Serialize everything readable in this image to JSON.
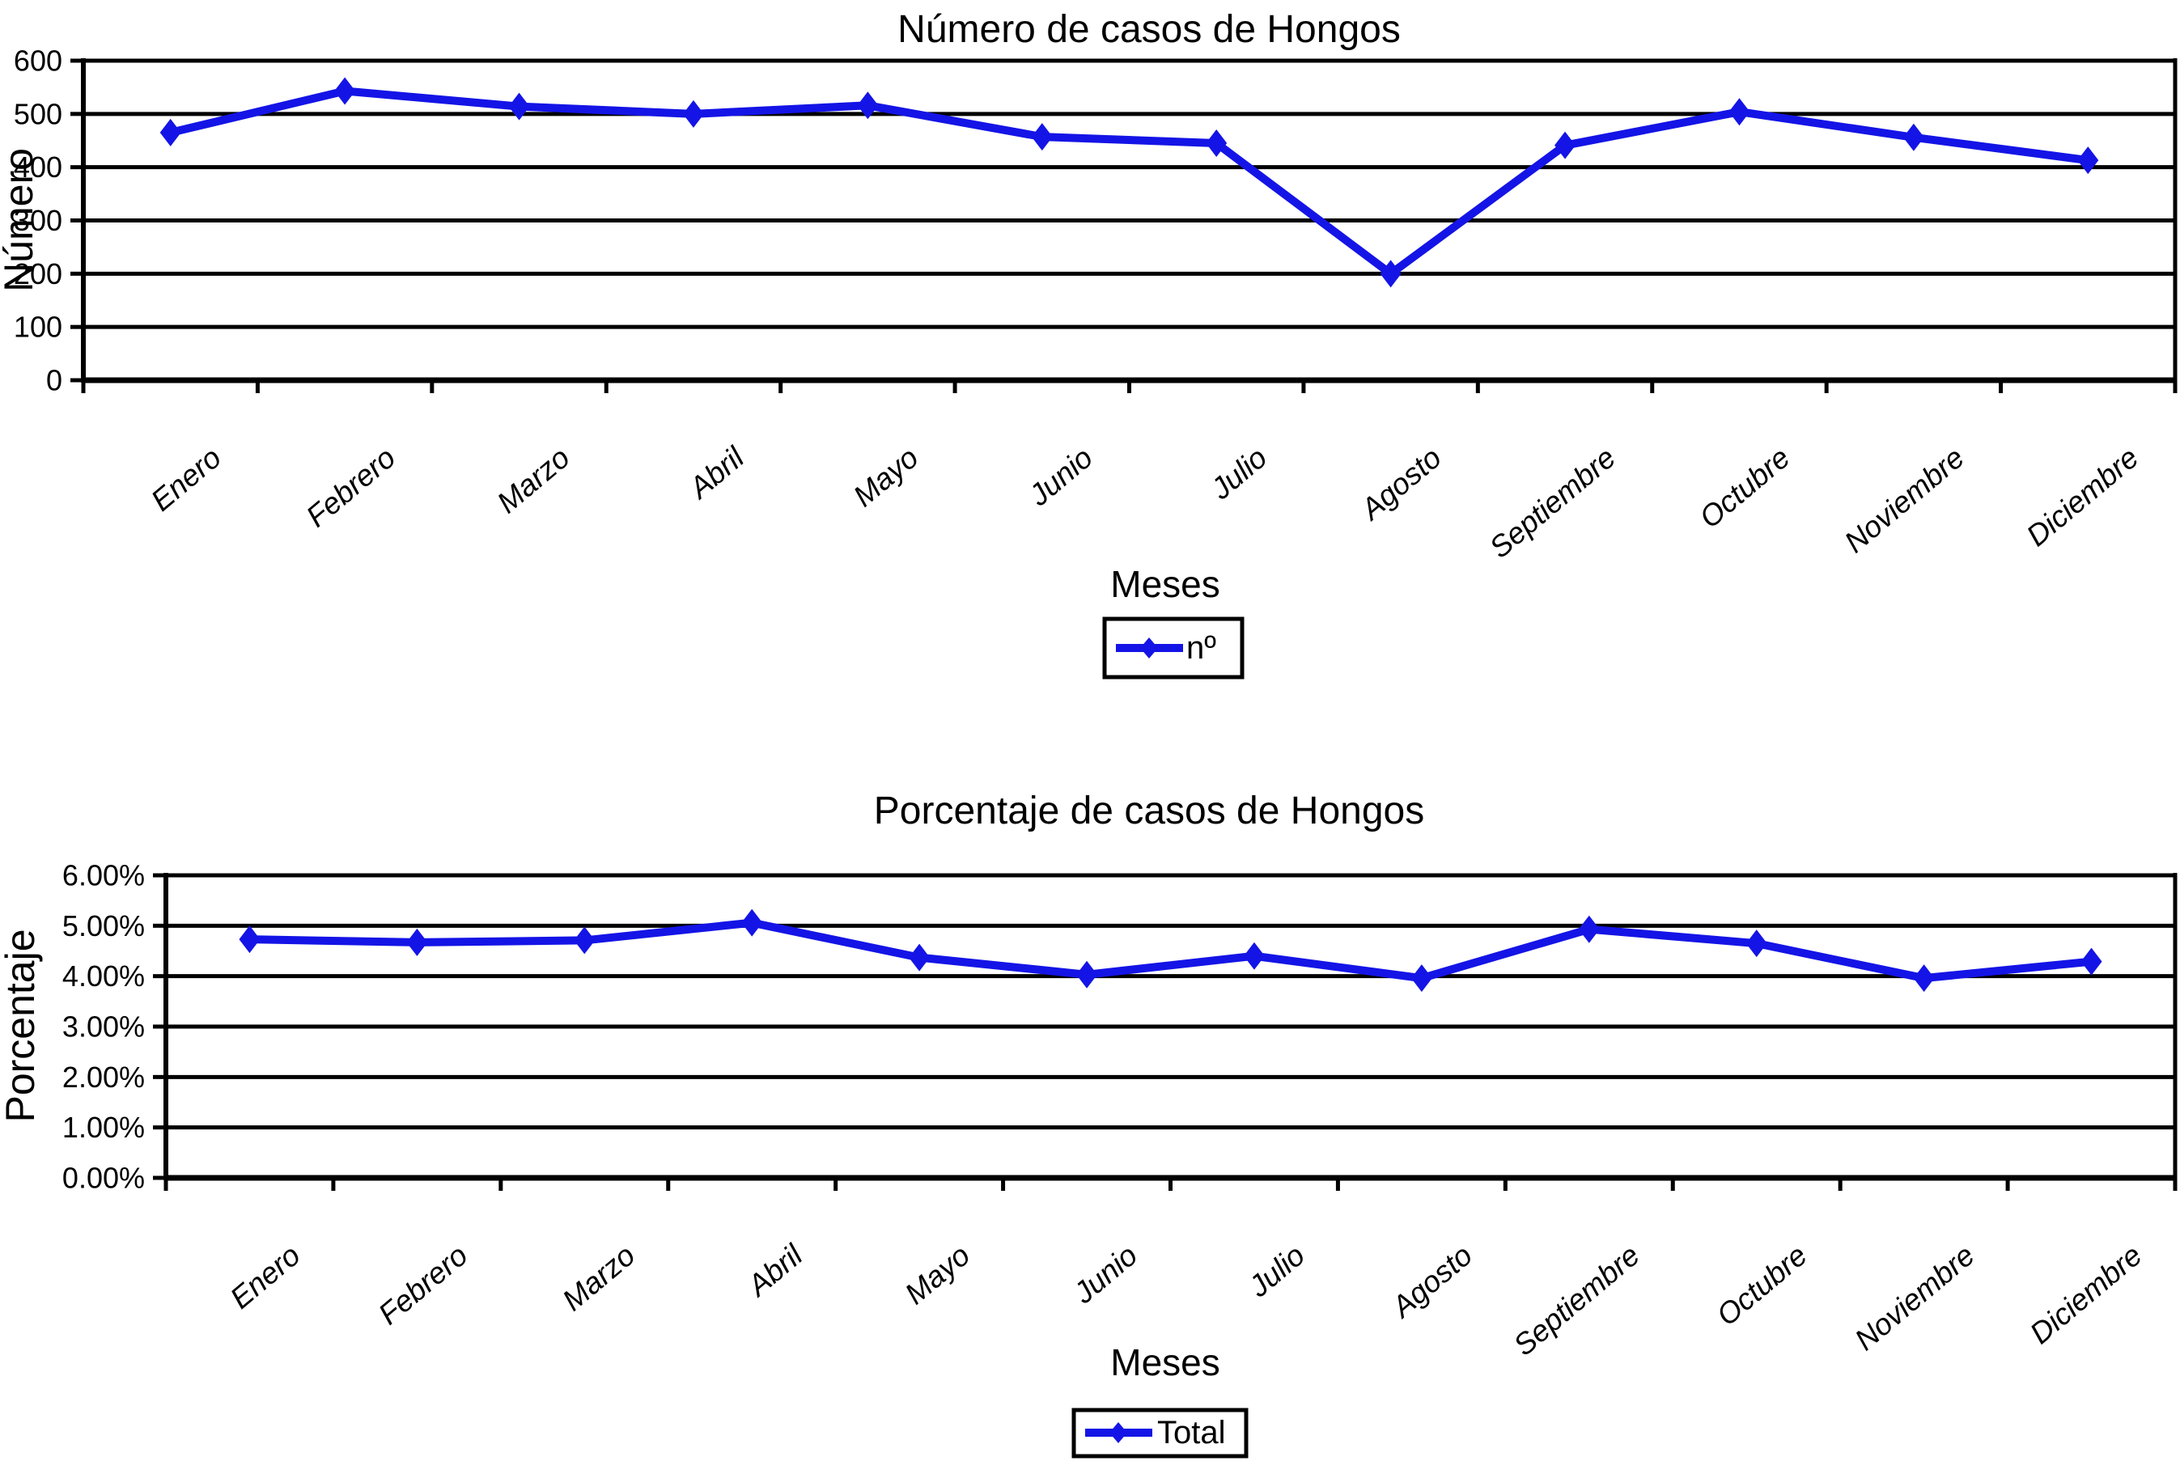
{
  "page": {
    "background": "#ffffff"
  },
  "colors": {
    "series_line": "#1414e6",
    "axis": "#000000",
    "gridline": "#000000",
    "text": "#000000",
    "legend_border": "#000000"
  },
  "chart_data": [
    {
      "type": "line",
      "title": "Número de casos de Hongos",
      "xlabel": "Meses",
      "ylabel": "Número",
      "categories": [
        "Enero",
        "Febrero",
        "Marzo",
        "Abril",
        "Mayo",
        "Junio",
        "Julio",
        "Agosto",
        "Septiembre",
        "Octubre",
        "Noviembre",
        "Diciembre"
      ],
      "series": [
        {
          "name": "nº",
          "values": [
            465,
            543,
            514,
            500,
            516,
            457,
            445,
            200,
            441,
            504,
            456,
            413
          ]
        }
      ],
      "ylim": [
        0,
        600
      ],
      "y_tick_labels": [
        "600",
        "500",
        "400",
        "300",
        "200",
        "100",
        "0"
      ],
      "grid": true,
      "legend_position": "bottom",
      "marker": "diamond"
    },
    {
      "type": "line",
      "title": "Porcentaje de casos de Hongos",
      "xlabel": "Meses",
      "ylabel": "Porcentaje",
      "categories": [
        "Enero",
        "Febrero",
        "Marzo",
        "Abril",
        "Mayo",
        "Junio",
        "Julio",
        "Agosto",
        "Septiembre",
        "Octubre",
        "Noviembre",
        "Diciembre"
      ],
      "series": [
        {
          "name": "Total",
          "values": [
            4.73,
            4.67,
            4.71,
            5.06,
            4.37,
            4.03,
            4.4,
            3.96,
            4.93,
            4.65,
            3.96,
            4.29
          ]
        }
      ],
      "ylim": [
        0,
        6
      ],
      "y_tick_labels": [
        "6.00%",
        "5.00%",
        "4.00%",
        "3.00%",
        "2.00%",
        "1.00%",
        "0.00%"
      ],
      "grid": true,
      "legend_position": "bottom",
      "marker": "diamond"
    }
  ]
}
